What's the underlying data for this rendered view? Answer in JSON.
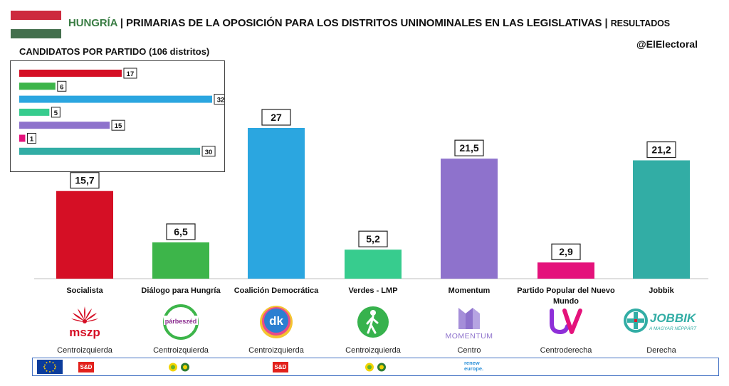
{
  "header": {
    "country": "HUNGRÍA",
    "sep1": "|",
    "title": "PRIMARIAS DE LA OPOSICIÓN PARA LOS DISTRITOS UNINOMINALES EN LAS LEGISLATIVAS",
    "sep2": "|",
    "subtitle": "RESULTADOS",
    "handle": "@ElElectoral",
    "flag_colors": [
      "#cd2a3e",
      "#ffffff",
      "#436f4d"
    ]
  },
  "inset": {
    "title": "CANDIDATOS POR PARTIDO (106 distritos)"
  },
  "chart_data": [
    {
      "type": "bar",
      "categories": [
        "Socialista",
        "Diálogo para Hungría",
        "Coalición Democrática",
        "Verdes - LMP",
        "Momentum",
        "Partido Popular del Nuevo Mundo",
        "Jobbik"
      ],
      "values": [
        15.7,
        6.5,
        27,
        5.2,
        21.5,
        2.9,
        21.2
      ],
      "labels": [
        "15,7",
        "6,5",
        "27",
        "5,2",
        "21,5",
        "2,9",
        "21,2"
      ],
      "colors": [
        "#d50f25",
        "#3db54a",
        "#2ba6e0",
        "#37cc8e",
        "#8e72cc",
        "#e4127b",
        "#32ada5"
      ],
      "ylim": [
        0,
        30
      ],
      "grid": false
    },
    {
      "type": "bar",
      "orientation": "horizontal",
      "title": "CANDIDATOS POR PARTIDO (106 distritos)",
      "values": [
        17,
        6,
        32,
        5,
        15,
        1,
        30
      ],
      "colors": [
        "#d50f25",
        "#3db54a",
        "#2ba6e0",
        "#37cc8e",
        "#8e72cc",
        "#e4127b",
        "#32ada5"
      ],
      "xlim": [
        0,
        36
      ]
    }
  ],
  "parties": [
    {
      "name": "Socialista",
      "ideology": "Centroizquierda",
      "logo": "mszp",
      "logo_icon": "mszp-logo-icon"
    },
    {
      "name": "Diálogo para Hungría",
      "ideology": "Centroizquierda",
      "logo": "párbeszéd",
      "logo_icon": "parbeszed-logo-icon"
    },
    {
      "name": "Coalición Democrática",
      "ideology": "Centroizquierda",
      "logo": "dk",
      "logo_icon": "dk-logo-icon"
    },
    {
      "name": "Verdes - LMP",
      "ideology": "Centroizquierda",
      "logo": "",
      "logo_icon": "lmp-walker-logo-icon"
    },
    {
      "name": "Momentum",
      "ideology": "Centro",
      "logo": "MOMENTUM",
      "logo_icon": "momentum-logo-icon"
    },
    {
      "name": "Partido Popular del Nuevo Mundo",
      "ideology": "Centroderecha",
      "logo": "",
      "logo_icon": "uv-logo-icon"
    },
    {
      "name": "Jobbik",
      "ideology": "Derecha",
      "logo": "JOBBIK",
      "logo_sub": "A MAGYAR NÉPPÁRT",
      "logo_icon": "jobbik-logo-icon"
    }
  ],
  "eu_groups": {
    "sd": "S&D",
    "renew": "renew europe."
  }
}
